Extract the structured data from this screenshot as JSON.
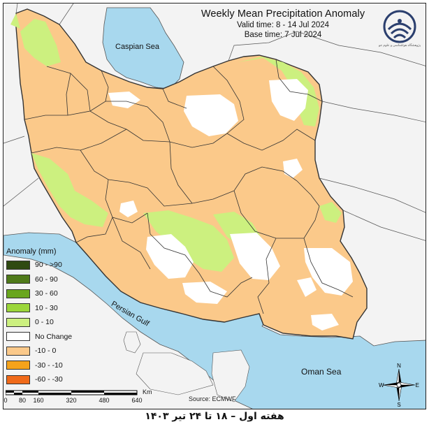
{
  "title": "Weekly Mean Precipitation Anomaly",
  "valid_time": "Valid time: 8 - 14 Jul 2024",
  "base_time": "Base time: 7 Jul 2024",
  "water_labels": {
    "caspian": "Caspian Sea",
    "persian": "Persian Gulf",
    "oman": "Oman Sea"
  },
  "legend": {
    "title": "Anomaly (mm)",
    "items": [
      {
        "label": "90 - >90",
        "color": "#2f4a12"
      },
      {
        "label": "60 - 90",
        "color": "#4f7a1a"
      },
      {
        "label": "30 - 60",
        "color": "#6aa61e"
      },
      {
        "label": "10 - 30",
        "color": "#9bd63a"
      },
      {
        "label": "0 - 10",
        "color": "#ccf07f"
      },
      {
        "label": "No Change",
        "color": "#ffffff"
      },
      {
        "label": "-10 - 0",
        "color": "#fbc98a"
      },
      {
        "label": "-30 - -10",
        "color": "#f5a31b"
      },
      {
        "label": "-60 - -30",
        "color": "#f06a1a"
      }
    ]
  },
  "scale": {
    "unit": "Km",
    "ticks": [
      "0",
      "80",
      "160",
      "320",
      "480",
      "640"
    ]
  },
  "source": "Source: ECMWF",
  "compass": {
    "n": "N",
    "s": "S",
    "e": "E",
    "w": "W"
  },
  "footer": "هفته اول – ۱۸ تا ۲۴ تیر ۱۴۰۳",
  "logo_text": "پژوهشگاه هواشناسی و علوم جو",
  "colors": {
    "water": "#a8d8ee",
    "land_outside": "#f3f3f3",
    "border": "#333333"
  }
}
